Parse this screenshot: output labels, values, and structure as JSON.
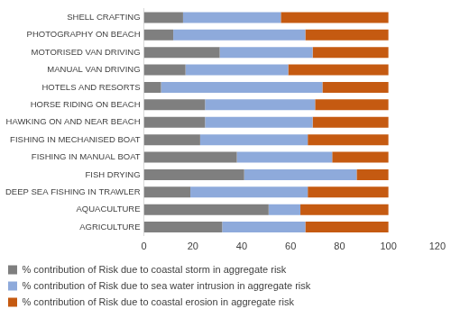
{
  "chart_data": {
    "type": "bar",
    "orientation": "horizontal",
    "stacked": true,
    "categories": [
      "SHELL CRAFTING",
      "PHOTOGRAPHY ON BEACH",
      "MOTORISED VAN DRIVING",
      "MANUAL VAN DRIVING",
      "HOTELS AND RESORTS",
      "HORSE RIDING ON BEACH",
      "HAWKING ON AND NEAR BEACH",
      "FISHING IN MECHANISED BOAT",
      "FISHING IN MANUAL BOAT",
      "FISH DRYING",
      "DEEP SEA FISHING IN TRAWLER",
      "AQUACULTURE",
      "AGRICULTURE"
    ],
    "series": [
      {
        "name": "% contribution of Risk due to coastal storm in aggregate risk",
        "color": "#7f7f7f",
        "values": [
          16,
          12,
          31,
          17,
          7,
          25,
          25,
          23,
          38,
          41,
          19,
          51,
          32
        ]
      },
      {
        "name": "% contribution of Risk due to sea water intrusion in aggregate risk",
        "color": "#8eaadb",
        "values": [
          40,
          54,
          38,
          42,
          66,
          45,
          44,
          44,
          39,
          46,
          48,
          13,
          34
        ]
      },
      {
        "name": "% contribution of Risk due to coastal erosion in aggregate risk",
        "color": "#c55a11",
        "values": [
          44,
          34,
          31,
          41,
          27,
          30,
          31,
          33,
          23,
          13,
          33,
          36,
          34
        ]
      }
    ],
    "xlim": [
      0,
      120
    ],
    "xticks": [
      0,
      20,
      40,
      60,
      80,
      100,
      120
    ],
    "grid": false,
    "legend": "bottom"
  }
}
